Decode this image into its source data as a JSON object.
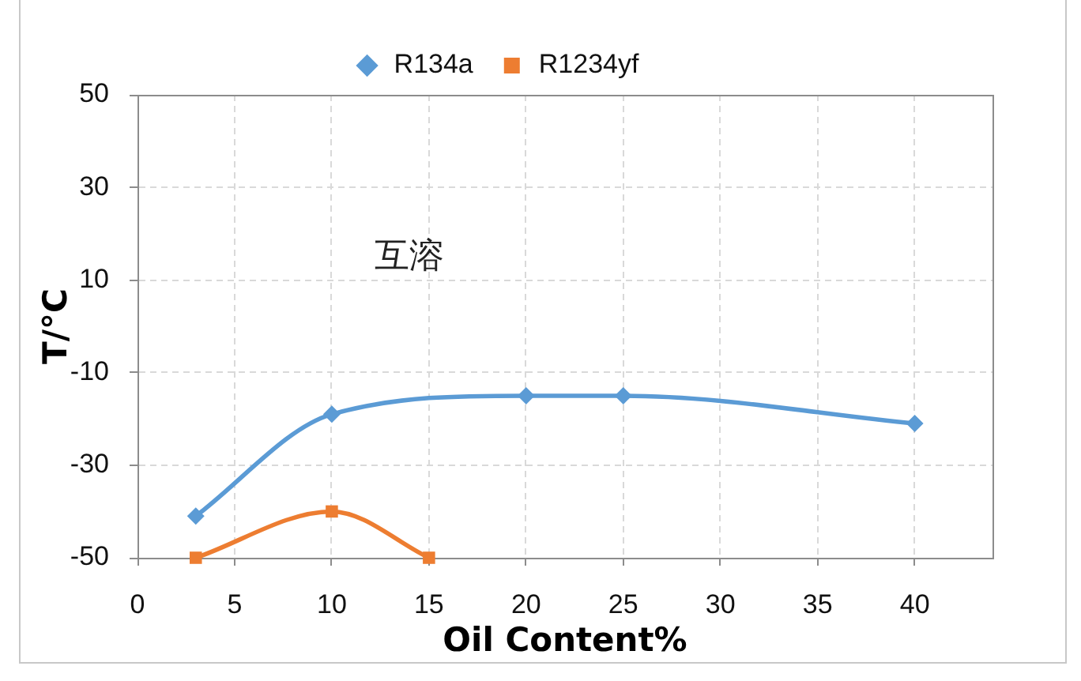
{
  "chart_data": {
    "type": "line",
    "xlabel": "Oil Content%",
    "ylabel": "T/°C",
    "series": [
      {
        "name": "R134a",
        "color": "#5b9bd5",
        "x": [
          3,
          10,
          20,
          25,
          40
        ],
        "values": [
          -41,
          -19,
          -15,
          -15,
          -21
        ],
        "marker": "diamond"
      },
      {
        "name": "R1234yf",
        "color": "#ed7d31",
        "x": [
          3,
          10,
          15
        ],
        "values": [
          -50,
          -40,
          -50
        ],
        "marker": "square"
      }
    ],
    "xlim": [
      0,
      44
    ],
    "xticks": [
      0,
      5,
      10,
      15,
      20,
      25,
      30,
      35,
      40
    ],
    "ylim": [
      -50,
      50
    ],
    "yticks": [
      -50,
      -30,
      -10,
      10,
      30,
      50
    ],
    "grid": true,
    "legend": "top",
    "line_style": "solid",
    "annotations": [
      "互溶"
    ]
  }
}
